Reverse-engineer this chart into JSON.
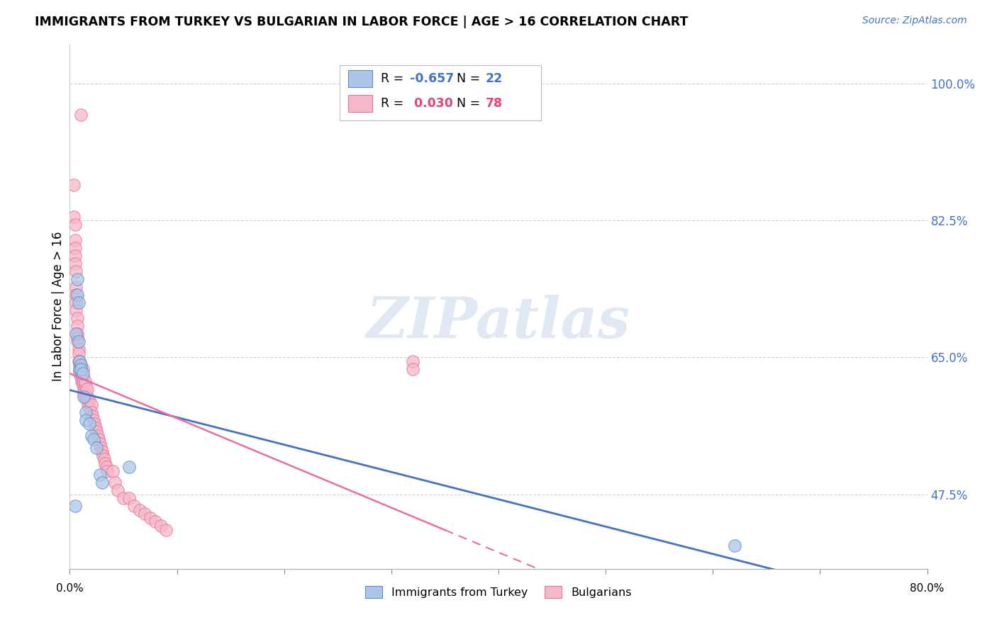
{
  "title": "IMMIGRANTS FROM TURKEY VS BULGARIAN IN LABOR FORCE | AGE > 16 CORRELATION CHART",
  "source": "Source: ZipAtlas.com",
  "ylabel": "In Labor Force | Age > 16",
  "ytick_labels": [
    "100.0%",
    "82.5%",
    "65.0%",
    "47.5%"
  ],
  "ytick_values": [
    1.0,
    0.825,
    0.65,
    0.475
  ],
  "xlim": [
    0.0,
    0.8
  ],
  "ylim": [
    0.38,
    1.05
  ],
  "legend_blue_r": "-0.657",
  "legend_blue_n": "22",
  "legend_pink_r": "0.030",
  "legend_pink_n": "78",
  "watermark": "ZIPatlas",
  "blue_color": "#adc6e8",
  "blue_edge_color": "#5b8ec4",
  "blue_line_color": "#4472c4",
  "pink_color": "#f5b8c8",
  "pink_edge_color": "#e8709a",
  "pink_line_color": "#e8709a",
  "turkey_x": [
    0.005,
    0.006,
    0.007,
    0.007,
    0.008,
    0.008,
    0.009,
    0.009,
    0.01,
    0.01,
    0.012,
    0.013,
    0.015,
    0.015,
    0.018,
    0.02,
    0.022,
    0.025,
    0.028,
    0.03,
    0.055,
    0.62
  ],
  "turkey_y": [
    0.46,
    0.68,
    0.73,
    0.75,
    0.72,
    0.67,
    0.645,
    0.635,
    0.64,
    0.635,
    0.63,
    0.6,
    0.58,
    0.57,
    0.565,
    0.55,
    0.545,
    0.535,
    0.5,
    0.49,
    0.51,
    0.41
  ],
  "bulgarian_x": [
    0.004,
    0.004,
    0.005,
    0.005,
    0.005,
    0.005,
    0.005,
    0.006,
    0.006,
    0.006,
    0.006,
    0.006,
    0.007,
    0.007,
    0.007,
    0.007,
    0.007,
    0.008,
    0.008,
    0.008,
    0.009,
    0.009,
    0.009,
    0.009,
    0.01,
    0.01,
    0.01,
    0.011,
    0.011,
    0.012,
    0.012,
    0.012,
    0.013,
    0.013,
    0.014,
    0.014,
    0.015,
    0.015,
    0.016,
    0.016,
    0.017,
    0.018,
    0.018,
    0.02,
    0.02,
    0.021,
    0.022,
    0.023,
    0.024,
    0.025,
    0.026,
    0.027,
    0.028,
    0.029,
    0.03,
    0.031,
    0.032,
    0.033,
    0.034,
    0.035,
    0.04,
    0.042,
    0.045,
    0.05,
    0.055,
    0.06,
    0.065,
    0.07,
    0.075,
    0.08,
    0.085,
    0.09,
    0.01,
    0.012,
    0.014,
    0.016,
    0.32,
    0.32
  ],
  "bulgarian_y": [
    0.87,
    0.83,
    0.82,
    0.8,
    0.79,
    0.78,
    0.77,
    0.76,
    0.74,
    0.73,
    0.72,
    0.71,
    0.7,
    0.69,
    0.68,
    0.675,
    0.67,
    0.66,
    0.655,
    0.645,
    0.645,
    0.64,
    0.635,
    0.63,
    0.64,
    0.635,
    0.625,
    0.63,
    0.62,
    0.625,
    0.62,
    0.615,
    0.61,
    0.605,
    0.615,
    0.6,
    0.61,
    0.6,
    0.6,
    0.595,
    0.59,
    0.595,
    0.585,
    0.59,
    0.58,
    0.575,
    0.57,
    0.565,
    0.56,
    0.555,
    0.55,
    0.545,
    0.54,
    0.535,
    0.53,
    0.525,
    0.52,
    0.515,
    0.51,
    0.505,
    0.505,
    0.49,
    0.48,
    0.47,
    0.47,
    0.46,
    0.455,
    0.45,
    0.445,
    0.44,
    0.435,
    0.43,
    0.96,
    0.635,
    0.62,
    0.61,
    0.645,
    0.635
  ]
}
